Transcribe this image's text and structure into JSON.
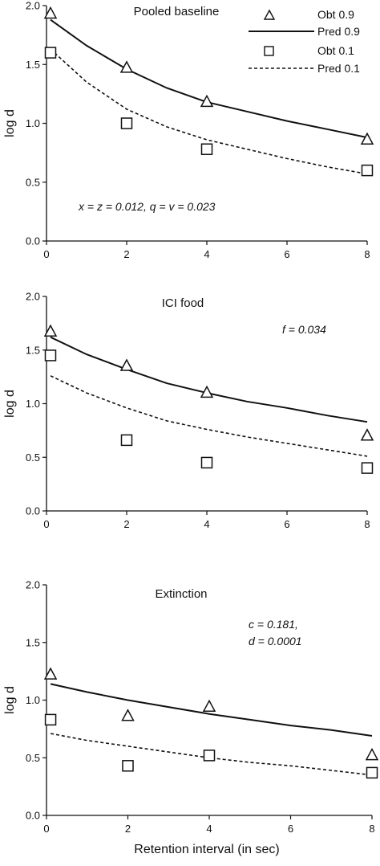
{
  "figure": {
    "xlabel": "Retention interval (in sec)"
  },
  "chart_data": [
    {
      "type": "line",
      "title": "Pooled baseline",
      "annotation": "x = z = 0.012, q = v = 0.023",
      "ylabel": "log d",
      "xlim": [
        0,
        8
      ],
      "ylim": [
        0,
        2
      ],
      "x_ticks": [
        "0",
        "2",
        "4",
        "6",
        "8"
      ],
      "y_ticks": [
        "0.0",
        "0.5",
        "1.0",
        "1.5",
        "2.0"
      ],
      "legend": {
        "position": "top-right",
        "entries": [
          {
            "label": "Obt 0.9",
            "marker": "triangle"
          },
          {
            "label": "Pred 0.9",
            "line": "solid"
          },
          {
            "label": "Obt 0.1",
            "marker": "square"
          },
          {
            "label": "Pred 0.1",
            "line": "dashed"
          }
        ]
      },
      "series": [
        {
          "name": "Obt 0.9",
          "kind": "points",
          "marker": "triangle",
          "x": [
            0.1,
            2,
            4,
            8
          ],
          "y": [
            1.93,
            1.47,
            1.18,
            0.86
          ]
        },
        {
          "name": "Pred 0.9",
          "kind": "line",
          "style": "solid",
          "x": [
            0.1,
            1,
            2,
            3,
            4,
            5,
            6,
            7,
            8
          ],
          "y": [
            1.88,
            1.66,
            1.46,
            1.3,
            1.18,
            1.1,
            1.02,
            0.95,
            0.88
          ]
        },
        {
          "name": "Obt 0.1",
          "kind": "points",
          "marker": "square",
          "x": [
            0.1,
            2,
            4,
            8
          ],
          "y": [
            1.6,
            1.0,
            0.78,
            0.6
          ]
        },
        {
          "name": "Pred 0.1",
          "kind": "line",
          "style": "dashed",
          "x": [
            0.1,
            1,
            2,
            3,
            4,
            5,
            6,
            7,
            8
          ],
          "y": [
            1.63,
            1.35,
            1.12,
            0.97,
            0.86,
            0.78,
            0.7,
            0.63,
            0.57
          ]
        }
      ]
    },
    {
      "type": "line",
      "title": "ICI food",
      "annotation": "f = 0.034",
      "ylabel": "log d",
      "xlim": [
        0,
        8
      ],
      "ylim": [
        0,
        2
      ],
      "x_ticks": [
        "0",
        "2",
        "4",
        "6",
        "8"
      ],
      "y_ticks": [
        "0.0",
        "0.5",
        "1.0",
        "1.5",
        "2.0"
      ],
      "series": [
        {
          "name": "Obt 0.9",
          "kind": "points",
          "marker": "triangle",
          "x": [
            0.1,
            2,
            4,
            8
          ],
          "y": [
            1.67,
            1.35,
            1.1,
            0.7
          ]
        },
        {
          "name": "Pred 0.9",
          "kind": "line",
          "style": "solid",
          "x": [
            0.1,
            1,
            2,
            3,
            4,
            5,
            6,
            7,
            8
          ],
          "y": [
            1.62,
            1.46,
            1.32,
            1.19,
            1.1,
            1.02,
            0.96,
            0.89,
            0.83
          ]
        },
        {
          "name": "Obt 0.1",
          "kind": "points",
          "marker": "square",
          "x": [
            0.1,
            2,
            4,
            8
          ],
          "y": [
            1.45,
            0.66,
            0.45,
            0.4
          ]
        },
        {
          "name": "Pred 0.1",
          "kind": "line",
          "style": "dashed",
          "x": [
            0.1,
            1,
            2,
            3,
            4,
            5,
            6,
            7,
            8
          ],
          "y": [
            1.26,
            1.1,
            0.96,
            0.84,
            0.76,
            0.69,
            0.63,
            0.57,
            0.51
          ]
        }
      ]
    },
    {
      "type": "line",
      "title": "Extinction",
      "annotation": [
        "c = 0.181,",
        "d = 0.0001"
      ],
      "ylabel": "log d",
      "xlim": [
        0,
        8
      ],
      "ylim": [
        0,
        2
      ],
      "x_ticks": [
        "0",
        "2",
        "4",
        "6",
        "8"
      ],
      "y_ticks": [
        "0.0",
        "0.5",
        "1.0",
        "1.5",
        "2.0"
      ],
      "series": [
        {
          "name": "Obt 0.9",
          "kind": "points",
          "marker": "triangle",
          "x": [
            0.1,
            2,
            4,
            8
          ],
          "y": [
            1.22,
            0.86,
            0.94,
            0.52
          ]
        },
        {
          "name": "Pred 0.9",
          "kind": "line",
          "style": "solid",
          "x": [
            0.1,
            1,
            2,
            3,
            4,
            5,
            6,
            7,
            8
          ],
          "y": [
            1.14,
            1.07,
            1.0,
            0.94,
            0.88,
            0.83,
            0.78,
            0.74,
            0.69
          ]
        },
        {
          "name": "Obt 0.1",
          "kind": "points",
          "marker": "square",
          "x": [
            0.1,
            2,
            4,
            8
          ],
          "y": [
            0.83,
            0.43,
            0.52,
            0.37
          ]
        },
        {
          "name": "Pred 0.1",
          "kind": "line",
          "style": "dashed",
          "x": [
            0.1,
            1,
            2,
            3,
            4,
            5,
            6,
            7,
            8
          ],
          "y": [
            0.71,
            0.65,
            0.6,
            0.55,
            0.5,
            0.46,
            0.43,
            0.39,
            0.35
          ]
        }
      ]
    }
  ]
}
